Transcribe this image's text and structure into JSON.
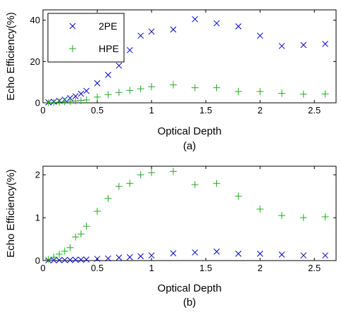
{
  "chart_data": [
    {
      "type": "scatter",
      "panel_label": "(a)",
      "xlabel": "Optical Depth",
      "ylabel": "Echo Efficiency(%)",
      "xlim": [
        0,
        2.7
      ],
      "ylim": [
        0,
        45
      ],
      "xticks": [
        "0",
        "0.5",
        "1",
        "1.5",
        "2",
        "2.5"
      ],
      "yticks": [
        "0",
        "20",
        "40"
      ],
      "legend": {
        "position": "top-left",
        "entries": [
          "2PE",
          "HPE"
        ]
      },
      "series": [
        {
          "name": "2PE",
          "marker": "x",
          "color": "#0000cc",
          "x": [
            0.05,
            0.1,
            0.15,
            0.2,
            0.25,
            0.3,
            0.35,
            0.4,
            0.5,
            0.6,
            0.7,
            0.8,
            0.9,
            1.0,
            1.2,
            1.4,
            1.6,
            1.8,
            2.0,
            2.2,
            2.4,
            2.6
          ],
          "y": [
            0.2,
            0.5,
            1.0,
            1.6,
            2.3,
            3.2,
            4.4,
            5.8,
            9.5,
            13.5,
            18.0,
            25.5,
            32.5,
            34.5,
            35.5,
            40.5,
            38.5,
            37.0,
            32.5,
            27.5,
            28.0,
            28.5
          ]
        },
        {
          "name": "HPE",
          "marker": "+",
          "color": "#22aa22",
          "x": [
            0.05,
            0.1,
            0.15,
            0.2,
            0.25,
            0.3,
            0.35,
            0.4,
            0.5,
            0.6,
            0.7,
            0.8,
            0.9,
            1.0,
            1.2,
            1.4,
            1.6,
            1.8,
            2.0,
            2.2,
            2.4,
            2.6
          ],
          "y": [
            0.1,
            0.2,
            0.3,
            0.5,
            0.7,
            0.9,
            1.1,
            1.4,
            2.8,
            4.0,
            5.0,
            6.0,
            6.8,
            7.8,
            8.7,
            7.3,
            7.3,
            5.5,
            5.5,
            4.6,
            4.2,
            4.3
          ]
        }
      ]
    },
    {
      "type": "scatter",
      "panel_label": "(b)",
      "xlabel": "Optical Depth",
      "ylabel": "Echo Efficiency(%)",
      "xlim": [
        0,
        2.7
      ],
      "ylim": [
        0,
        2.2
      ],
      "xticks": [
        "0",
        "0.5",
        "1",
        "1.5",
        "2",
        "2.5"
      ],
      "yticks": [
        "0",
        "1",
        "2"
      ],
      "series": [
        {
          "name": "2PE",
          "marker": "x",
          "color": "#0000cc",
          "x": [
            0.05,
            0.1,
            0.15,
            0.2,
            0.25,
            0.3,
            0.35,
            0.4,
            0.5,
            0.6,
            0.7,
            0.8,
            0.9,
            1.0,
            1.2,
            1.4,
            1.6,
            1.8,
            2.0,
            2.2,
            2.4,
            2.6
          ],
          "y": [
            0.005,
            0.008,
            0.01,
            0.012,
            0.015,
            0.02,
            0.02,
            0.025,
            0.04,
            0.05,
            0.07,
            0.08,
            0.1,
            0.12,
            0.17,
            0.19,
            0.21,
            0.16,
            0.16,
            0.14,
            0.12,
            0.12
          ]
        },
        {
          "name": "HPE",
          "marker": "+",
          "color": "#22aa22",
          "x": [
            0.05,
            0.1,
            0.15,
            0.2,
            0.25,
            0.3,
            0.35,
            0.4,
            0.5,
            0.6,
            0.7,
            0.8,
            0.9,
            1.0,
            1.2,
            1.4,
            1.6,
            1.8,
            2.0,
            2.2,
            2.4,
            2.6
          ],
          "y": [
            0.03,
            0.08,
            0.15,
            0.22,
            0.3,
            0.55,
            0.62,
            0.8,
            1.15,
            1.45,
            1.73,
            1.8,
            2.0,
            2.05,
            2.08,
            1.77,
            1.8,
            1.5,
            1.2,
            1.05,
            1.0,
            1.02
          ]
        }
      ]
    }
  ]
}
